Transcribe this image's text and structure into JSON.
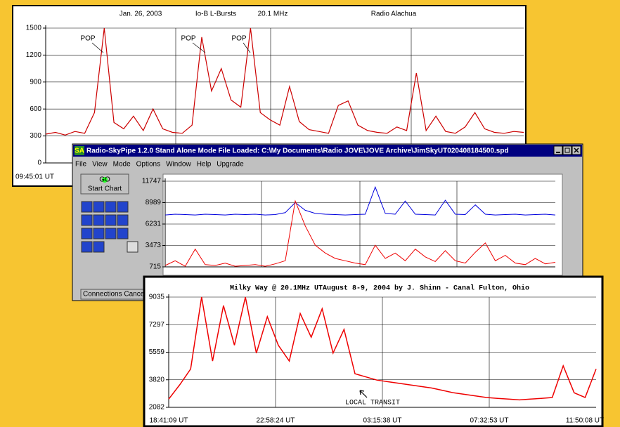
{
  "chart_data": [
    {
      "type": "line",
      "title_parts": [
        "Jan. 26, 2003",
        "Io-B  L-Bursts",
        "20.1 MHz",
        "Radio Alachua"
      ],
      "annotations": [
        "POP",
        "POP",
        "POP"
      ],
      "xtick_labels": [
        "09:45:01 UT"
      ],
      "ylim": [
        0,
        1500
      ],
      "yticks": [
        0,
        300,
        600,
        900,
        1200,
        1500
      ],
      "color": "#cc0000",
      "values": [
        320,
        340,
        310,
        350,
        330,
        560,
        1500,
        450,
        380,
        520,
        360,
        600,
        380,
        340,
        330,
        420,
        1400,
        800,
        1050,
        700,
        620,
        1500,
        560,
        480,
        420,
        850,
        460,
        370,
        350,
        330,
        640,
        690,
        420,
        360,
        340,
        330,
        400,
        360,
        1000,
        360,
        520,
        350,
        330,
        400,
        560,
        380,
        340,
        330,
        350,
        340
      ]
    },
    {
      "type": "line",
      "ylim": [
        715,
        11747
      ],
      "yticks": [
        715,
        3473,
        6231,
        8989,
        11747
      ],
      "series": [
        {
          "color": "#0000dd",
          "values": [
            7400,
            7500,
            7450,
            7400,
            7500,
            7450,
            7400,
            7500,
            7450,
            7500,
            7400,
            7450,
            7700,
            9000,
            8000,
            7600,
            7500,
            7450,
            7400,
            7450,
            7500,
            11000,
            7600,
            7500,
            9200,
            7500,
            7450,
            7400,
            9300,
            7500,
            7450,
            8700,
            7500,
            7400,
            7450,
            7500,
            7400,
            7450,
            7500,
            7400
          ]
        },
        {
          "color": "#ee0000",
          "values": [
            900,
            1500,
            800,
            3000,
            1000,
            900,
            1200,
            800,
            900,
            1000,
            800,
            1100,
            1500,
            9200,
            6000,
            3500,
            2500,
            1800,
            1500,
            1200,
            1000,
            3500,
            1800,
            2500,
            1500,
            3000,
            2000,
            1400,
            2800,
            1500,
            1200,
            2600,
            3800,
            1500,
            2200,
            1200,
            1000,
            1800,
            1100,
            1300
          ]
        }
      ]
    },
    {
      "type": "line",
      "title": "Milky Way @ 20.1MHz UTAugust 8-9, 2004 by J. Shinn - Canal Fulton, Ohio",
      "annotations": [
        "LOCAL TRANSIT"
      ],
      "xtick_labels": [
        "18:41:09 UT",
        "22:58:24 UT",
        "03:15:38 UT",
        "07:32:53 UT",
        "11:50:08 UT"
      ],
      "ylim": [
        2082,
        9035
      ],
      "yticks": [
        2082,
        3820,
        5559,
        7297,
        9035
      ],
      "color": "#ee0000",
      "values": [
        2600,
        3500,
        4500,
        9035,
        5000,
        8500,
        6000,
        9035,
        5500,
        7800,
        6000,
        5000,
        8000,
        6500,
        8300,
        5500,
        7000,
        4200,
        4000,
        3800,
        3700,
        3600,
        3500,
        3400,
        3300,
        3150,
        3000,
        2900,
        2800,
        2700,
        2650,
        2600,
        2550,
        2600,
        2650,
        2700,
        4700,
        3000,
        2700,
        4500
      ]
    }
  ],
  "window": {
    "icon": "SA",
    "title": "Radio-SkyPipe 1.2.0   Stand Alone Mode  File Loaded: C:\\My Documents\\Radio JOVE\\JOVE Archive\\JimSkyUT020408184500.spd",
    "menu": [
      "File",
      "View",
      "Mode",
      "Options",
      "Window",
      "Help",
      "Upgrade"
    ],
    "go": "GO",
    "start": "Start Chart",
    "status": "Connections Canceled"
  }
}
